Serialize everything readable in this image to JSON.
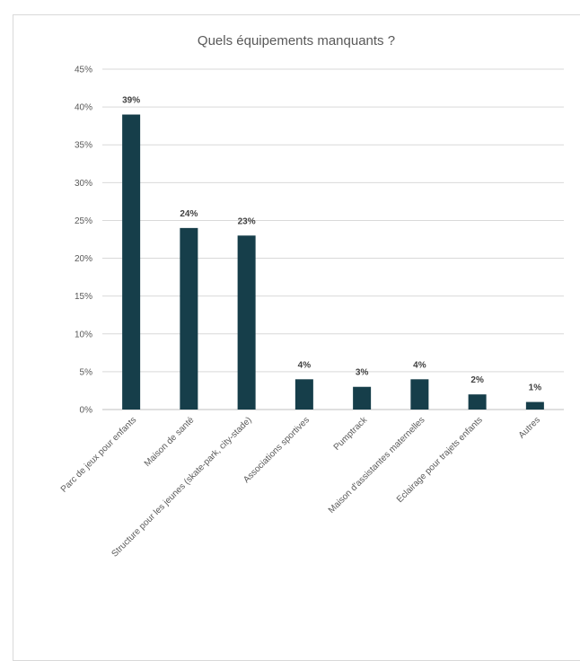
{
  "chart_data": {
    "type": "bar",
    "title": "Quels équipements manquants ?",
    "xlabel": "",
    "ylabel": "",
    "categories": [
      "Parc de jeux pour enfants",
      "Maison de santé",
      "Structure pour les jeunes (skate-park, city-stade)",
      "Associations sportives",
      "Pumptrack",
      "Maison d'assistantes maternelles",
      "Eclairage pour trajets enfants",
      "Autres"
    ],
    "values": [
      39,
      24,
      23,
      4,
      3,
      4,
      2,
      1
    ],
    "data_labels": [
      "39%",
      "24%",
      "23%",
      "4%",
      "3%",
      "4%",
      "2%",
      "1%"
    ],
    "yticks": [
      "0%",
      "5%",
      "10%",
      "15%",
      "20%",
      "25%",
      "30%",
      "35%",
      "40%",
      "45%"
    ],
    "ylim": [
      0,
      45
    ],
    "grid": true,
    "legend": "none",
    "bar_color": "#163e4a"
  }
}
